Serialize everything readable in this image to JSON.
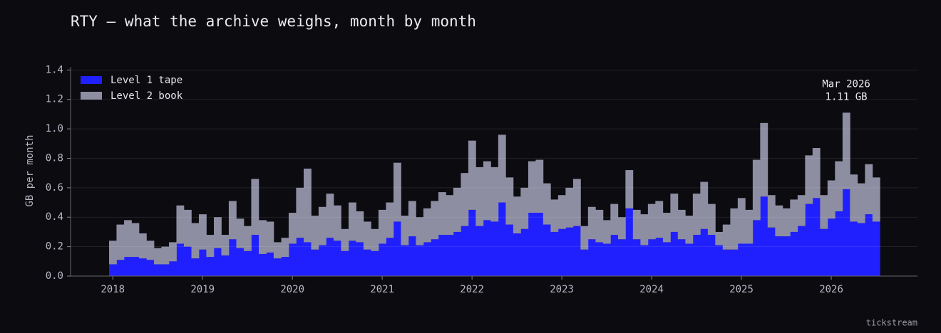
{
  "chart_data": {
    "type": "stacked-bar",
    "title": "RTY — what the archive weighs, month by month",
    "ylabel": "GB per month",
    "footer": "tickstream",
    "legend": "upper left",
    "grid": true,
    "xlim": [
      2017.53,
      2026.96
    ],
    "xticks": [
      2018,
      2019,
      2020,
      2021,
      2022,
      2023,
      2024,
      2025,
      2026
    ],
    "ylim": [
      0,
      1.45
    ],
    "yticks": [
      {
        "value": 0,
        "label": "0.0"
      },
      {
        "value": 0.2,
        "label": "0.2"
      },
      {
        "value": 0.4,
        "label": "0.4"
      },
      {
        "value": 0.6,
        "label": "0.6"
      },
      {
        "value": 0.8,
        "label": "0.8"
      },
      {
        "value": 1,
        "label": "1.0"
      },
      {
        "value": 1.2,
        "label": "1.2"
      },
      {
        "value": 1.4,
        "label": "1.4"
      }
    ],
    "annotation": {
      "x": 2026.167,
      "y": 1.11,
      "lines": [
        "Mar 2026",
        "1.11 GB"
      ]
    },
    "x": [
      2018,
      2018.083,
      2018.167,
      2018.25,
      2018.333,
      2018.417,
      2018.5,
      2018.583,
      2018.667,
      2018.75,
      2018.833,
      2018.917,
      2019,
      2019.083,
      2019.167,
      2019.25,
      2019.333,
      2019.417,
      2019.5,
      2019.583,
      2019.667,
      2019.75,
      2019.833,
      2019.917,
      2020,
      2020.083,
      2020.167,
      2020.25,
      2020.333,
      2020.417,
      2020.5,
      2020.583,
      2020.667,
      2020.75,
      2020.833,
      2020.917,
      2021,
      2021.083,
      2021.167,
      2021.25,
      2021.333,
      2021.417,
      2021.5,
      2021.583,
      2021.667,
      2021.75,
      2021.833,
      2021.917,
      2022,
      2022.083,
      2022.167,
      2022.25,
      2022.333,
      2022.417,
      2022.5,
      2022.583,
      2022.667,
      2022.75,
      2022.833,
      2022.917,
      2023,
      2023.083,
      2023.167,
      2023.25,
      2023.333,
      2023.417,
      2023.5,
      2023.583,
      2023.667,
      2023.75,
      2023.833,
      2023.917,
      2024,
      2024.083,
      2024.167,
      2024.25,
      2024.333,
      2024.417,
      2024.5,
      2024.583,
      2024.667,
      2024.75,
      2024.833,
      2024.917,
      2025,
      2025.083,
      2025.167,
      2025.25,
      2025.333,
      2025.417,
      2025.5,
      2025.583,
      2025.667,
      2025.75,
      2025.833,
      2025.917,
      2026,
      2026.083,
      2026.167,
      2026.25,
      2026.333,
      2026.417,
      2026.5
    ],
    "series": [
      {
        "name": "Level 1 tape",
        "color": "#2020ff",
        "values": [
          0.08,
          0.11,
          0.13,
          0.13,
          0.12,
          0.11,
          0.08,
          0.08,
          0.1,
          0.22,
          0.2,
          0.12,
          0.18,
          0.13,
          0.19,
          0.14,
          0.25,
          0.19,
          0.17,
          0.28,
          0.15,
          0.16,
          0.12,
          0.13,
          0.22,
          0.26,
          0.23,
          0.18,
          0.21,
          0.26,
          0.24,
          0.17,
          0.24,
          0.23,
          0.18,
          0.17,
          0.22,
          0.26,
          0.37,
          0.21,
          0.27,
          0.21,
          0.23,
          0.25,
          0.28,
          0.28,
          0.3,
          0.34,
          0.45,
          0.34,
          0.38,
          0.37,
          0.5,
          0.35,
          0.29,
          0.32,
          0.43,
          0.43,
          0.35,
          0.3,
          0.32,
          0.33,
          0.34,
          0.18,
          0.25,
          0.23,
          0.22,
          0.28,
          0.25,
          0.46,
          0.25,
          0.21,
          0.25,
          0.26,
          0.23,
          0.3,
          0.25,
          0.22,
          0.28,
          0.32,
          0.28,
          0.21,
          0.18,
          0.18,
          0.22,
          0.22,
          0.38,
          0.54,
          0.33,
          0.27,
          0.27,
          0.3,
          0.34,
          0.49,
          0.53,
          0.32,
          0.39,
          0.44,
          0.59,
          0.37,
          0.36,
          0.42,
          0.37
        ]
      },
      {
        "name": "Level 2 book",
        "color": "#8e8ea3",
        "values": [
          0.16,
          0.24,
          0.25,
          0.23,
          0.17,
          0.13,
          0.11,
          0.12,
          0.13,
          0.26,
          0.25,
          0.24,
          0.24,
          0.15,
          0.21,
          0.14,
          0.26,
          0.2,
          0.17,
          0.38,
          0.23,
          0.21,
          0.11,
          0.13,
          0.21,
          0.34,
          0.5,
          0.23,
          0.26,
          0.3,
          0.24,
          0.15,
          0.26,
          0.21,
          0.19,
          0.15,
          0.23,
          0.24,
          0.4,
          0.2,
          0.24,
          0.19,
          0.23,
          0.26,
          0.29,
          0.27,
          0.3,
          0.36,
          0.47,
          0.4,
          0.4,
          0.37,
          0.46,
          0.32,
          0.25,
          0.28,
          0.35,
          0.36,
          0.28,
          0.22,
          0.23,
          0.27,
          0.32,
          0.16,
          0.22,
          0.22,
          0.16,
          0.21,
          0.15,
          0.26,
          0.2,
          0.21,
          0.24,
          0.25,
          0.2,
          0.26,
          0.2,
          0.19,
          0.28,
          0.32,
          0.21,
          0.09,
          0.17,
          0.28,
          0.31,
          0.23,
          0.41,
          0.5,
          0.22,
          0.21,
          0.19,
          0.22,
          0.21,
          0.33,
          0.34,
          0.23,
          0.26,
          0.34,
          0.52,
          0.32,
          0.27,
          0.34,
          0.3
        ]
      }
    ]
  }
}
